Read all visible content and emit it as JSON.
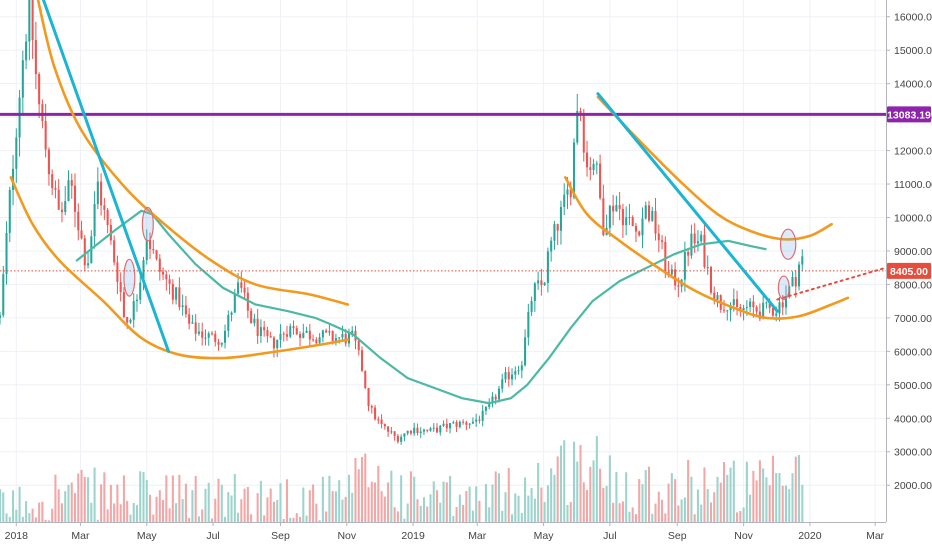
{
  "chart_data": {
    "type": "candlestick",
    "title": "",
    "xlabel": "",
    "ylabel": "",
    "ylim": [
      900,
      16500
    ],
    "y_ticks": [
      2000,
      3000,
      4000,
      5000,
      6000,
      7000,
      8000,
      9000,
      10000,
      11000,
      12000,
      13000,
      14000,
      15000,
      16000
    ],
    "y_tick_labels": [
      "2000.00",
      "3000.00",
      "4000.00",
      "5000.00",
      "6000.00",
      "7000.00",
      "8000.00",
      "9000.00",
      "10000.00",
      "11000.00",
      "12000.00",
      "13000.00",
      "14000.00",
      "15000.00",
      "16000.00"
    ],
    "x_range": [
      -15,
      800
    ],
    "x_ticks": [
      {
        "day": 0,
        "label": "2018"
      },
      {
        "day": 59,
        "label": "Mar"
      },
      {
        "day": 120,
        "label": "May"
      },
      {
        "day": 181,
        "label": "Jul"
      },
      {
        "day": 243,
        "label": "Sep"
      },
      {
        "day": 304,
        "label": "Nov"
      },
      {
        "day": 365,
        "label": "2019"
      },
      {
        "day": 424,
        "label": "Mar"
      },
      {
        "day": 485,
        "label": "May"
      },
      {
        "day": 546,
        "label": "Jul"
      },
      {
        "day": 608,
        "label": "Sep"
      },
      {
        "day": 669,
        "label": "Nov"
      },
      {
        "day": 730,
        "label": "2020"
      },
      {
        "day": 790,
        "label": "Mar"
      }
    ],
    "grid": true,
    "price_anchors": [
      [
        -15,
        7000
      ],
      [
        -5,
        11000
      ],
      [
        5,
        14500
      ],
      [
        12,
        16500
      ],
      [
        20,
        13500
      ],
      [
        30,
        11500
      ],
      [
        40,
        10000
      ],
      [
        50,
        11000
      ],
      [
        65,
        8500
      ],
      [
        75,
        11000
      ],
      [
        95,
        8000
      ],
      [
        100,
        6800
      ],
      [
        110,
        7500
      ],
      [
        120,
        9500
      ],
      [
        130,
        8500
      ],
      [
        150,
        7500
      ],
      [
        160,
        6700
      ],
      [
        180,
        6400
      ],
      [
        190,
        6400
      ],
      [
        205,
        8000
      ],
      [
        215,
        7000
      ],
      [
        225,
        6500
      ],
      [
        235,
        6200
      ],
      [
        250,
        6700
      ],
      [
        270,
        6500
      ],
      [
        290,
        6400
      ],
      [
        310,
        6400
      ],
      [
        318,
        5500
      ],
      [
        325,
        4300
      ],
      [
        335,
        3800
      ],
      [
        350,
        3400
      ],
      [
        365,
        3700
      ],
      [
        380,
        3600
      ],
      [
        400,
        3800
      ],
      [
        420,
        3900
      ],
      [
        430,
        4100
      ],
      [
        440,
        4600
      ],
      [
        450,
        5200
      ],
      [
        465,
        5700
      ],
      [
        475,
        7800
      ],
      [
        485,
        8000
      ],
      [
        490,
        9000
      ],
      [
        505,
        10500
      ],
      [
        510,
        11000
      ],
      [
        517,
        13800
      ],
      [
        525,
        11500
      ],
      [
        532,
        11800
      ],
      [
        540,
        9800
      ],
      [
        550,
        10500
      ],
      [
        560,
        10000
      ],
      [
        570,
        9600
      ],
      [
        580,
        10300
      ],
      [
        590,
        9500
      ],
      [
        600,
        8200
      ],
      [
        610,
        8100
      ],
      [
        620,
        9300
      ],
      [
        630,
        9200
      ],
      [
        640,
        7900
      ],
      [
        647,
        7400
      ],
      [
        655,
        7500
      ],
      [
        663,
        7200
      ],
      [
        673,
        7300
      ],
      [
        685,
        7200
      ],
      [
        700,
        7300
      ],
      [
        712,
        7900
      ],
      [
        718,
        8300
      ],
      [
        722,
        8900
      ],
      [
        725,
        8400
      ]
    ],
    "ma_line": [
      [
        55,
        8700
      ],
      [
        90,
        9600
      ],
      [
        115,
        10200
      ],
      [
        125,
        10100
      ],
      [
        140,
        9500
      ],
      [
        165,
        8600
      ],
      [
        190,
        7900
      ],
      [
        220,
        7400
      ],
      [
        250,
        7200
      ],
      [
        275,
        7000
      ],
      [
        290,
        6800
      ],
      [
        310,
        6500
      ],
      [
        335,
        5800
      ],
      [
        360,
        5200
      ],
      [
        385,
        4900
      ],
      [
        410,
        4600
      ],
      [
        435,
        4450
      ],
      [
        455,
        4600
      ],
      [
        470,
        5000
      ],
      [
        490,
        5800
      ],
      [
        510,
        6700
      ],
      [
        530,
        7500
      ],
      [
        555,
        8100
      ],
      [
        580,
        8500
      ],
      [
        605,
        8900
      ],
      [
        630,
        9200
      ],
      [
        655,
        9300
      ],
      [
        675,
        9150
      ],
      [
        690,
        9050
      ]
    ],
    "volume_anchors": [
      [
        -15,
        1300
      ],
      [
        40,
        1800
      ],
      [
        100,
        1700
      ],
      [
        180,
        1600
      ],
      [
        240,
        1650
      ],
      [
        300,
        1600
      ],
      [
        325,
        2400
      ],
      [
        360,
        1700
      ],
      [
        420,
        1500
      ],
      [
        470,
        2000
      ],
      [
        520,
        2700
      ],
      [
        560,
        2100
      ],
      [
        610,
        1900
      ],
      [
        640,
        2100
      ],
      [
        680,
        1900
      ],
      [
        720,
        2200
      ]
    ],
    "volume_base": 900,
    "annotations": {
      "resistance_value": 13083.19,
      "resistance_label": "13083.19",
      "last_price": 8405,
      "last_price_label": "8405.00",
      "trendlines": [
        {
          "color": "#1ab5d3",
          "points": [
            [
              25,
              16500
            ],
            [
              140,
              6000
            ]
          ]
        },
        {
          "color": "#1ab5d3",
          "points": [
            [
              535,
              13700
            ],
            [
              700,
              7200
            ]
          ]
        }
      ],
      "arcs": [
        {
          "color": "#f29a1f",
          "points": [
            [
              -5,
              11200
            ],
            [
              15,
              9800
            ],
            [
              40,
              8700
            ],
            [
              80,
              7500
            ],
            [
              115,
              6400
            ],
            [
              150,
              5900
            ],
            [
              190,
              5800
            ],
            [
              230,
              5950
            ],
            [
              280,
              6200
            ],
            [
              305,
              6350
            ]
          ]
        },
        {
          "color": "#f29a1f",
          "points": [
            [
              20,
              16500
            ],
            [
              35,
              14500
            ],
            [
              60,
              12600
            ],
            [
              100,
              10900
            ],
            [
              140,
              9700
            ],
            [
              180,
              8700
            ],
            [
              220,
              8000
            ],
            [
              270,
              7700
            ],
            [
              305,
              7400
            ]
          ]
        },
        {
          "color": "#f29a1f",
          "points": [
            [
              505,
              11200
            ],
            [
              525,
              10100
            ],
            [
              555,
              9300
            ],
            [
              595,
              8400
            ],
            [
              625,
              7800
            ],
            [
              660,
              7300
            ],
            [
              690,
              7000
            ],
            [
              720,
              7050
            ],
            [
              750,
              7400
            ],
            [
              765,
              7600
            ]
          ]
        },
        {
          "color": "#f29a1f",
          "points": [
            [
              535,
              13600
            ],
            [
              570,
              12400
            ],
            [
              610,
              11100
            ],
            [
              645,
              10100
            ],
            [
              675,
              9600
            ],
            [
              705,
              9350
            ],
            [
              730,
              9450
            ],
            [
              750,
              9800
            ]
          ]
        }
      ],
      "dotted_projection": {
        "color": "#e74c3c",
        "points": [
          [
            700,
            7550
          ],
          [
            800,
            8500
          ]
        ]
      },
      "ellipses": [
        {
          "day": 104,
          "price": 8200,
          "r_day": 5,
          "r_price": 550
        },
        {
          "day": 121,
          "price": 9800,
          "r_day": 5,
          "r_price": 500
        },
        {
          "day": 710,
          "price": 9200,
          "r_day": 7,
          "r_price": 450
        },
        {
          "day": 706,
          "price": 7900,
          "r_day": 5,
          "r_price": 350
        }
      ]
    },
    "colors": {
      "up": "#26a69a",
      "down": "#ef5350",
      "volume_up": "#9cd3cc",
      "volume_down": "#f3a6a6",
      "ma": "#4cb9a5",
      "trendline": "#1ab5d3",
      "arc": "#f29a1f",
      "resistance": "#8e24aa",
      "last_price": "#e74c3c",
      "grid": "#eef1f6",
      "axis_text": "#444444"
    }
  }
}
